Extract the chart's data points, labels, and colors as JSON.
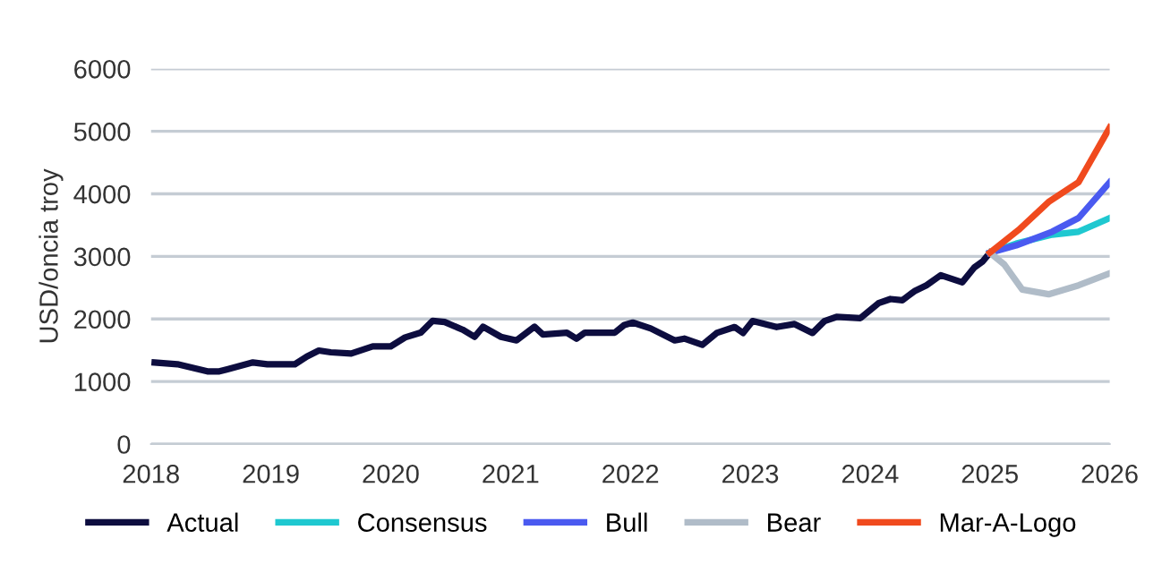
{
  "chart_data": {
    "type": "line",
    "ylabel": "USD/oncia troy",
    "xlim": [
      2018,
      2026
    ],
    "xticks": [
      2018,
      2019,
      2020,
      2021,
      2022,
      2023,
      2024,
      2025,
      2026
    ],
    "ylim": [
      0,
      6000
    ],
    "yticks": [
      0,
      1000,
      2000,
      3000,
      4000,
      5000,
      6000
    ],
    "grid": "y",
    "legend": "bottom",
    "marker": "none",
    "line_style": "solid",
    "series": [
      {
        "name": "Actual",
        "color": "#0d0d3f",
        "x": [
          2018.03,
          2018.22,
          2018.47,
          2018.57,
          2018.85,
          2018.97,
          2019.2,
          2019.3,
          2019.4,
          2019.5,
          2019.67,
          2019.85,
          2020.0,
          2020.12,
          2020.25,
          2020.35,
          2020.45,
          2020.6,
          2020.7,
          2020.77,
          2020.92,
          2021.05,
          2021.2,
          2021.27,
          2021.47,
          2021.55,
          2021.62,
          2021.87,
          2021.95,
          2022.02,
          2022.17,
          2022.37,
          2022.45,
          2022.6,
          2022.72,
          2022.87,
          2022.94,
          2023.02,
          2023.22,
          2023.37,
          2023.52,
          2023.62,
          2023.72,
          2023.92,
          2024.07,
          2024.17,
          2024.27,
          2024.37,
          2024.47,
          2024.59,
          2024.77,
          2024.87,
          2024.94,
          2025.0
        ],
        "values": [
          1305,
          1276,
          1162,
          1162,
          1305,
          1276,
          1276,
          1400,
          1495,
          1467,
          1448,
          1562,
          1562,
          1705,
          1781,
          1971,
          1952,
          1829,
          1714,
          1876,
          1714,
          1657,
          1876,
          1752,
          1781,
          1686,
          1781,
          1781,
          1905,
          1943,
          1848,
          1657,
          1686,
          1586,
          1776,
          1871,
          1776,
          1967,
          1871,
          1919,
          1776,
          1967,
          2033,
          2014,
          2252,
          2319,
          2300,
          2443,
          2538,
          2700,
          2586,
          2824,
          2919,
          3060
        ]
      },
      {
        "name": "Consensus",
        "color": "#1fc8d0",
        "x": [
          2025.0,
          2025.22,
          2025.52,
          2025.74,
          2026.0
        ],
        "values": [
          3060,
          3205,
          3348,
          3395,
          3614
        ]
      },
      {
        "name": "Bull",
        "color": "#4a5af0",
        "x": [
          2025.0,
          2025.22,
          2025.52,
          2025.74,
          2026.0
        ],
        "values": [
          3060,
          3176,
          3395,
          3614,
          4186
        ]
      },
      {
        "name": "Bear",
        "color": "#b0bcc8",
        "x": [
          2025.0,
          2025.12,
          2025.27,
          2025.49,
          2025.74,
          2026.0
        ],
        "values": [
          3060,
          2871,
          2471,
          2395,
          2538,
          2729
        ]
      },
      {
        "name": "Mar-A-Logo",
        "color": "#f04a1e",
        "x": [
          2025.0,
          2025.24,
          2025.49,
          2025.74,
          2026.0
        ],
        "values": [
          3060,
          3424,
          3871,
          4186,
          5062
        ]
      }
    ]
  }
}
